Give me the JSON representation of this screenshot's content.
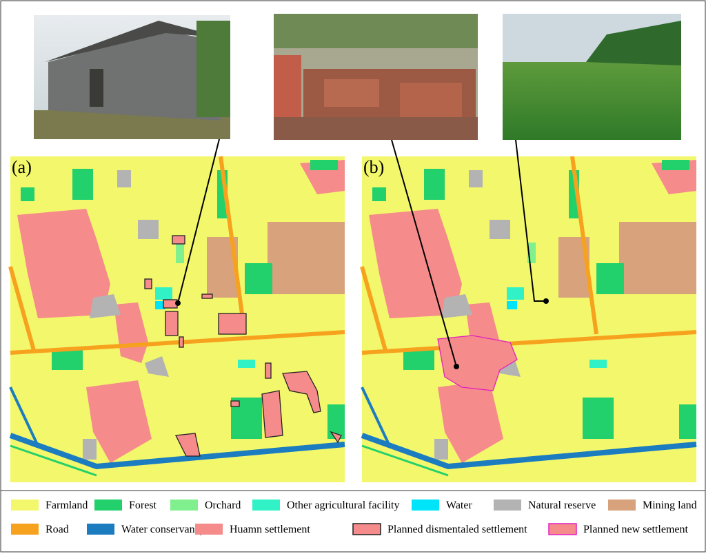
{
  "panels": [
    {
      "label": "(a)"
    },
    {
      "label": "(b)"
    }
  ],
  "legend": [
    {
      "label": "Farmland",
      "color": "#f2f76c"
    },
    {
      "label": "Forest",
      "color": "#22d06c"
    },
    {
      "label": "Orchard",
      "color": "#80f08e"
    },
    {
      "label": "Other agricultural facility",
      "color": "#30f2c6"
    },
    {
      "label": "Water",
      "color": "#00e4fa"
    },
    {
      "label": "Natural reserve",
      "color": "#b3b3b3"
    },
    {
      "label": "Mining land",
      "color": "#d8a27c"
    },
    {
      "label": "Road",
      "color": "#f7a21e"
    },
    {
      "label": "Water conservancy",
      "color": "#1b7cc0"
    },
    {
      "label": "Huamn settlement",
      "color": "#f58b8b"
    },
    {
      "label": "Planned dismentaled settlement",
      "color": "#f58b8b",
      "outline": "#222222"
    },
    {
      "label": "Planned new settlement",
      "color": "#f58b8b",
      "outline": "#e020c0"
    }
  ]
}
